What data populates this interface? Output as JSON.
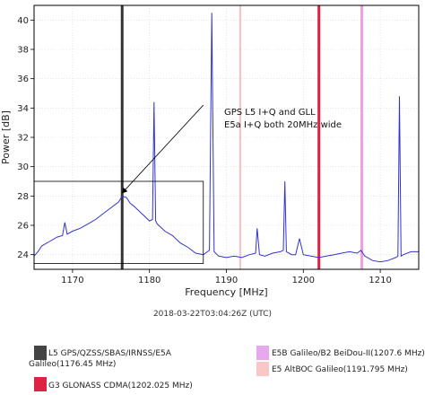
{
  "chart_data": {
    "type": "line",
    "xlabel": "Frequency [MHz]",
    "ylabel": "Power [dB]",
    "xlim": [
      1165,
      1215
    ],
    "ylim": [
      23,
      41
    ],
    "x_ticks": [
      1170,
      1180,
      1190,
      1200,
      1210
    ],
    "y_ticks": [
      24,
      26,
      28,
      30,
      32,
      34,
      36,
      38,
      40
    ],
    "grid": true,
    "series": [
      {
        "color": "#3333cc",
        "points": [
          [
            1165.0,
            23.9
          ],
          [
            1165.5,
            24.2
          ],
          [
            1166.0,
            24.6
          ],
          [
            1167.0,
            24.9
          ],
          [
            1168.0,
            25.2
          ],
          [
            1168.7,
            25.3
          ],
          [
            1169.0,
            26.2
          ],
          [
            1169.3,
            25.4
          ],
          [
            1170.0,
            25.6
          ],
          [
            1171.0,
            25.8
          ],
          [
            1172.0,
            26.1
          ],
          [
            1173.0,
            26.4
          ],
          [
            1174.0,
            26.8
          ],
          [
            1175.0,
            27.2
          ],
          [
            1176.0,
            27.6
          ],
          [
            1176.45,
            28.0
          ],
          [
            1177.0,
            27.9
          ],
          [
            1177.5,
            27.5
          ],
          [
            1178.0,
            27.3
          ],
          [
            1179.0,
            26.8
          ],
          [
            1180.0,
            26.3
          ],
          [
            1180.4,
            26.4
          ],
          [
            1180.6,
            34.4
          ],
          [
            1180.8,
            26.3
          ],
          [
            1181.0,
            26.1
          ],
          [
            1182.0,
            25.6
          ],
          [
            1183.0,
            25.3
          ],
          [
            1184.0,
            24.8
          ],
          [
            1185.0,
            24.5
          ],
          [
            1186.0,
            24.1
          ],
          [
            1187.0,
            24.0
          ],
          [
            1187.8,
            24.3
          ],
          [
            1188.1,
            40.5
          ],
          [
            1188.4,
            24.2
          ],
          [
            1189.0,
            23.9
          ],
          [
            1190.0,
            23.8
          ],
          [
            1191.0,
            23.9
          ],
          [
            1192.0,
            23.8
          ],
          [
            1193.0,
            24.0
          ],
          [
            1193.8,
            24.1
          ],
          [
            1194.0,
            25.8
          ],
          [
            1194.3,
            24.0
          ],
          [
            1195.0,
            23.9
          ],
          [
            1196.0,
            24.1
          ],
          [
            1197.0,
            24.2
          ],
          [
            1197.4,
            24.3
          ],
          [
            1197.6,
            29.0
          ],
          [
            1197.8,
            24.2
          ],
          [
            1198.5,
            24.0
          ],
          [
            1199.0,
            24.0
          ],
          [
            1199.5,
            25.1
          ],
          [
            1200.0,
            24.0
          ],
          [
            1201.0,
            23.9
          ],
          [
            1202.0,
            23.8
          ],
          [
            1203.0,
            23.9
          ],
          [
            1204.0,
            24.0
          ],
          [
            1205.0,
            24.1
          ],
          [
            1206.0,
            24.2
          ],
          [
            1207.0,
            24.1
          ],
          [
            1207.5,
            24.3
          ],
          [
            1208.0,
            23.9
          ],
          [
            1209.0,
            23.6
          ],
          [
            1210.0,
            23.5
          ],
          [
            1211.0,
            23.6
          ],
          [
            1212.0,
            23.8
          ],
          [
            1212.3,
            23.9
          ],
          [
            1212.5,
            34.8
          ],
          [
            1212.7,
            23.9
          ],
          [
            1213.0,
            24.0
          ],
          [
            1214.0,
            24.2
          ],
          [
            1215.0,
            24.2
          ]
        ]
      }
    ],
    "vertical_markers": [
      {
        "x": 1176.45,
        "color": "#333333",
        "width": 3
      },
      {
        "x": 1191.795,
        "color": "#f5c2c2",
        "width": 2
      },
      {
        "x": 1202.025,
        "color": "#dd2244",
        "width": 3
      },
      {
        "x": 1207.6,
        "color": "#f0a0e0",
        "width": 3
      }
    ],
    "annotation": {
      "lines": [
        "GPS L5 I+Q and GLL",
        "E5a I+Q both 20MHz wide"
      ],
      "arrow_to": [
        1176.45,
        28.2
      ],
      "arrow_from": [
        1187,
        34.2
      ],
      "box": {
        "x0": 1165,
        "x1": 1187,
        "y0": 23.4,
        "y1": 29.0
      }
    },
    "timestamp": "2018-03-22T03:04:26Z (UTC)",
    "legend": [
      {
        "color": "#444444",
        "label_lines": [
          "L5 GPS/QZSS/SBAS/IRNSS/E5A",
          "Galileo(1176.45 MHz)"
        ]
      },
      {
        "color": "#e8a8ee",
        "label_lines": [
          "E5B Galileo/B2 BeiDou-II(1207.6 MHz)"
        ]
      },
      {
        "color": "#f8c8c8",
        "label_lines": [
          "E5 AltBOC Galileo(1191.795 MHz)"
        ]
      },
      {
        "color": "#dd2244",
        "label_lines": [
          "G3 GLONASS CDMA(1202.025 MHz)"
        ]
      }
    ]
  }
}
